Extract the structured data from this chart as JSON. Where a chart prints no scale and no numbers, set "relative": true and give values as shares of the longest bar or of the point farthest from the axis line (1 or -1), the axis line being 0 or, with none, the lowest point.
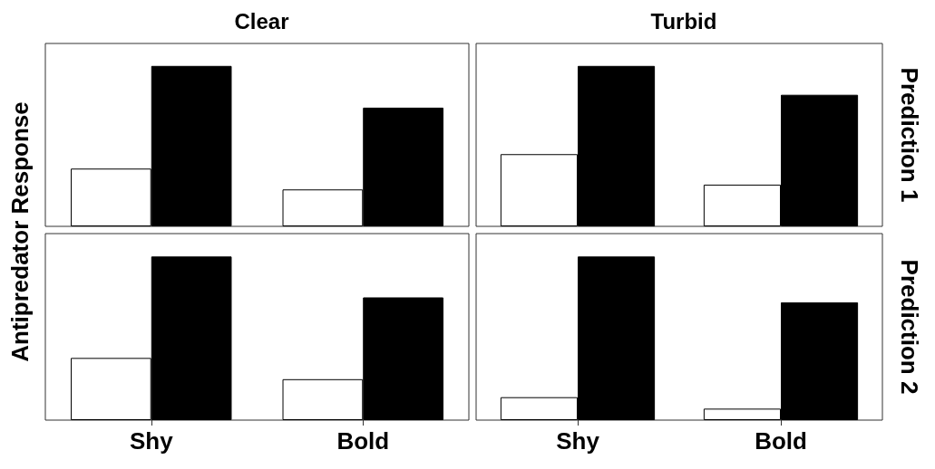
{
  "chart_data": [
    {
      "type": "bar",
      "title": "Clear",
      "ylabel": "Antipredator Response",
      "categories": [
        null,
        null
      ],
      "relative": true,
      "tick_labels": false,
      "series": [
        {
          "color": "#ffffff",
          "values": [
            0.36,
            0.23
          ]
        },
        {
          "color": "#000000",
          "values": [
            1,
            0.74
          ]
        }
      ]
    },
    {
      "type": "bar",
      "title": "Turbid",
      "y2label": "Prediction 1",
      "categories": [
        null,
        null
      ],
      "relative": true,
      "tick_labels": false,
      "series": [
        {
          "color": "#ffffff",
          "values": [
            0.45,
            0.26
          ]
        },
        {
          "color": "#000000",
          "values": [
            1,
            0.82
          ]
        }
      ]
    },
    {
      "type": "bar",
      "categories": [
        "Shy",
        "Bold"
      ],
      "relative": true,
      "tick_labels": "x",
      "series": [
        {
          "color": "#ffffff",
          "values": [
            0.38,
            0.25
          ]
        },
        {
          "color": "#000000",
          "values": [
            1,
            0.75
          ]
        }
      ]
    },
    {
      "type": "bar",
      "y2label": "Prediction 2",
      "categories": [
        "Shy",
        "Bold"
      ],
      "relative": true,
      "tick_labels": "x",
      "series": [
        {
          "color": "#ffffff",
          "values": [
            0.14,
            0.07
          ]
        },
        {
          "color": "#000000",
          "values": [
            1,
            0.72
          ]
        }
      ]
    }
  ]
}
